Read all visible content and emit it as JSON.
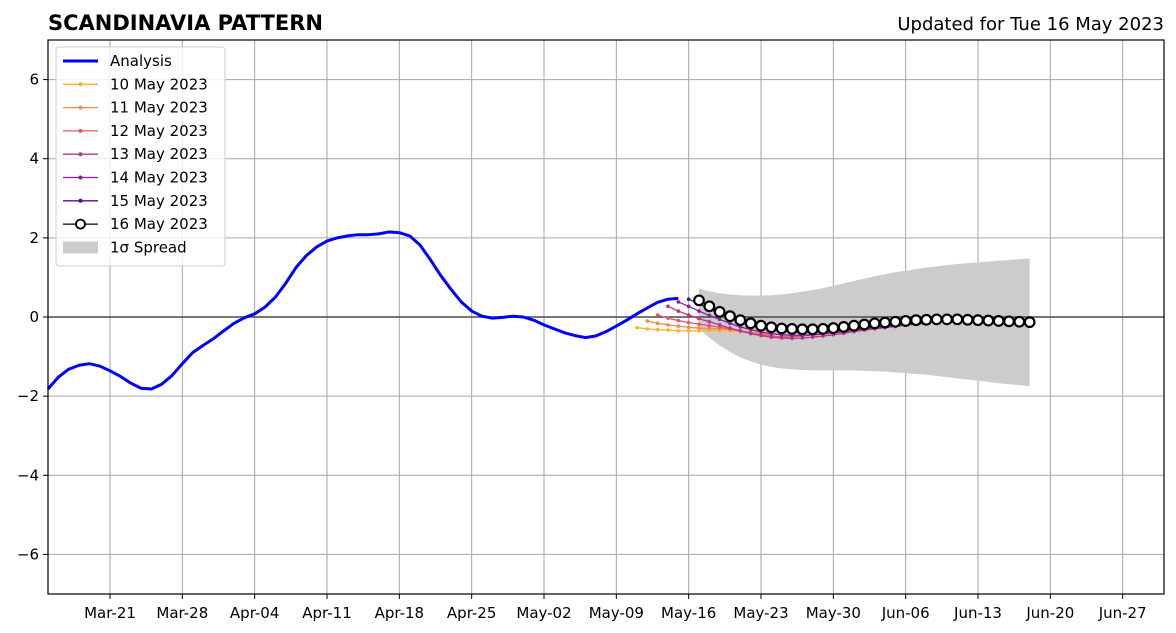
{
  "chart_data": {
    "type": "line",
    "title": "SCANDINAVIA PATTERN",
    "subtitle": "Updated for Tue 16 May 2023",
    "xlabel": "",
    "ylabel": "",
    "x_range": [
      "2023-03-15",
      "2023-07-01"
    ],
    "ylim": [
      -7,
      7
    ],
    "y_ticks": [
      -6,
      -4,
      -2,
      0,
      2,
      4,
      6
    ],
    "y_tick_labels": [
      "−6",
      "−4",
      "−2",
      "0",
      "2",
      "4",
      "6"
    ],
    "x_ticks": [
      {
        "date": "2023-03-21",
        "label": "Mar-21"
      },
      {
        "date": "2023-03-28",
        "label": "Mar-28"
      },
      {
        "date": "2023-04-04",
        "label": "Apr-04"
      },
      {
        "date": "2023-04-11",
        "label": "Apr-11"
      },
      {
        "date": "2023-04-18",
        "label": "Apr-18"
      },
      {
        "date": "2023-04-25",
        "label": "Apr-25"
      },
      {
        "date": "2023-05-02",
        "label": "May-02"
      },
      {
        "date": "2023-05-09",
        "label": "May-09"
      },
      {
        "date": "2023-05-16",
        "label": "May-16"
      },
      {
        "date": "2023-05-23",
        "label": "May-23"
      },
      {
        "date": "2023-05-30",
        "label": "May-30"
      },
      {
        "date": "2023-06-06",
        "label": "Jun-06"
      },
      {
        "date": "2023-06-13",
        "label": "Jun-13"
      },
      {
        "date": "2023-06-20",
        "label": "Jun-20"
      },
      {
        "date": "2023-06-27",
        "label": "Jun-27"
      }
    ],
    "grid": true,
    "legend_position": "top-left",
    "series": [
      {
        "name": "Analysis",
        "color": "#0000ff",
        "start_date": "2023-03-15",
        "values": [
          -1.82,
          -1.52,
          -1.32,
          -1.22,
          -1.18,
          -1.24,
          -1.36,
          -1.5,
          -1.67,
          -1.8,
          -1.82,
          -1.7,
          -1.48,
          -1.18,
          -0.9,
          -0.72,
          -0.55,
          -0.35,
          -0.16,
          -0.02,
          0.08,
          0.25,
          0.5,
          0.85,
          1.25,
          1.55,
          1.77,
          1.92,
          2.0,
          2.05,
          2.08,
          2.08,
          2.1,
          2.15,
          2.13,
          2.05,
          1.82,
          1.45,
          1.05,
          0.7,
          0.38,
          0.15,
          0.02,
          -0.03,
          -0.01,
          0.02,
          0.0,
          -0.08,
          -0.2,
          -0.3,
          -0.4,
          -0.47,
          -0.52,
          -0.48,
          -0.37,
          -0.23,
          -0.08,
          0.08,
          0.23,
          0.37,
          0.45,
          0.47
        ]
      },
      {
        "name": "10 May 2023",
        "color": "#fbb32f",
        "start_date": "2023-05-11",
        "values": [
          -0.27,
          -0.3,
          -0.32,
          -0.33,
          -0.35,
          -0.35,
          -0.35,
          -0.34,
          -0.34,
          -0.35,
          -0.37,
          -0.38
        ]
      },
      {
        "name": "11 May 2023",
        "color": "#f58b4b",
        "start_date": "2023-05-12",
        "values": [
          -0.1,
          -0.16,
          -0.2,
          -0.23,
          -0.26,
          -0.28,
          -0.29,
          -0.3,
          -0.32,
          -0.35,
          -0.38,
          -0.42,
          -0.45
        ]
      },
      {
        "name": "12 May 2023",
        "color": "#e0596a",
        "start_date": "2023-05-13",
        "values": [
          0.05,
          -0.03,
          -0.09,
          -0.14,
          -0.18,
          -0.22,
          -0.26,
          -0.3,
          -0.35,
          -0.4,
          -0.45,
          -0.48,
          -0.5,
          -0.5,
          -0.48,
          -0.45,
          -0.42,
          -0.38,
          -0.35,
          -0.32,
          -0.29,
          -0.26,
          -0.23,
          -0.2,
          -0.17,
          -0.15,
          -0.13,
          -0.12
        ]
      },
      {
        "name": "13 May 2023",
        "color": "#b8348a",
        "start_date": "2023-05-14",
        "values": [
          0.27,
          0.15,
          0.05,
          -0.04,
          -0.12,
          -0.2,
          -0.28,
          -0.35,
          -0.42,
          -0.47,
          -0.51,
          -0.53,
          -0.54,
          -0.53,
          -0.51,
          -0.48,
          -0.45,
          -0.41,
          -0.37,
          -0.33,
          -0.3,
          -0.27,
          -0.24,
          -0.21,
          -0.18,
          -0.16
        ]
      },
      {
        "name": "14 May 2023",
        "color": "#8b1da0",
        "start_date": "2023-05-15",
        "values": [
          0.38,
          0.27,
          0.15,
          0.04,
          -0.06,
          -0.16,
          -0.25,
          -0.32,
          -0.38,
          -0.42,
          -0.45,
          -0.46,
          -0.46,
          -0.45,
          -0.43,
          -0.4,
          -0.37,
          -0.33,
          -0.3,
          -0.27,
          -0.24,
          -0.22,
          -0.2,
          -0.18,
          -0.16
        ]
      },
      {
        "name": "15 May 2023",
        "color": "#520a9a",
        "start_date": "2023-05-16",
        "values": [
          0.45,
          0.33,
          0.2,
          0.08,
          -0.03,
          -0.12,
          -0.2,
          -0.27,
          -0.32,
          -0.36,
          -0.38,
          -0.39,
          -0.39,
          -0.38,
          -0.36,
          -0.33,
          -0.3,
          -0.27,
          -0.24,
          -0.21,
          -0.18,
          -0.16,
          -0.14,
          -0.13
        ]
      },
      {
        "name": "16 May 2023",
        "color": "#000000",
        "marker_fill": "#ffffff",
        "start_date": "2023-05-17",
        "values": [
          0.42,
          0.27,
          0.13,
          0.02,
          -0.08,
          -0.16,
          -0.22,
          -0.26,
          -0.29,
          -0.3,
          -0.31,
          -0.31,
          -0.3,
          -0.28,
          -0.25,
          -0.22,
          -0.19,
          -0.16,
          -0.14,
          -0.12,
          -0.1,
          -0.08,
          -0.07,
          -0.06,
          -0.06,
          -0.06,
          -0.07,
          -0.08,
          -0.09,
          -0.1,
          -0.11,
          -0.12,
          -0.13
        ]
      }
    ],
    "spread": {
      "name": "1σ Spread",
      "color": "#cccccc",
      "start_date": "2023-05-17",
      "upper": [
        0.72,
        0.65,
        0.6,
        0.57,
        0.55,
        0.54,
        0.54,
        0.55,
        0.57,
        0.6,
        0.64,
        0.68,
        0.73,
        0.79,
        0.85,
        0.91,
        0.97,
        1.03,
        1.08,
        1.13,
        1.17,
        1.21,
        1.25,
        1.28,
        1.31,
        1.34,
        1.36,
        1.38,
        1.4,
        1.42,
        1.44,
        1.46,
        1.48
      ],
      "lower": [
        -0.3,
        -0.52,
        -0.72,
        -0.88,
        -1.02,
        -1.12,
        -1.2,
        -1.26,
        -1.3,
        -1.32,
        -1.34,
        -1.35,
        -1.35,
        -1.35,
        -1.35,
        -1.35,
        -1.36,
        -1.37,
        -1.38,
        -1.4,
        -1.42,
        -1.44,
        -1.46,
        -1.49,
        -1.52,
        -1.55,
        -1.58,
        -1.61,
        -1.64,
        -1.67,
        -1.7,
        -1.72,
        -1.75
      ]
    }
  }
}
